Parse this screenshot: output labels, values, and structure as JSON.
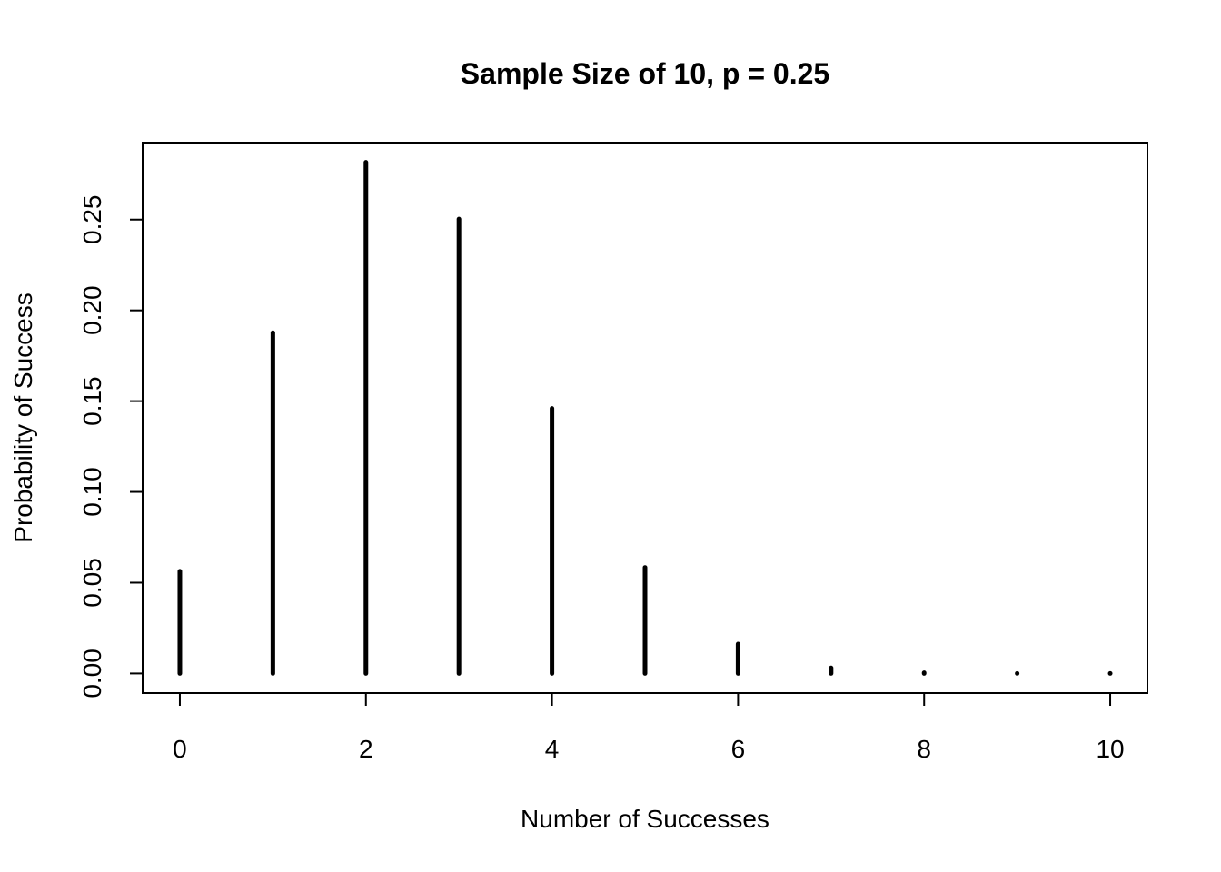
{
  "chart_data": {
    "type": "bar",
    "style": "histogram-lines (type='h')",
    "title": "Sample Size of 10, p = 0.25",
    "xlabel": "Number of Successes",
    "ylabel": "Probability of Success",
    "x": [
      0,
      1,
      2,
      3,
      4,
      5,
      6,
      7,
      8,
      9,
      10
    ],
    "values": [
      0.0563,
      0.1877,
      0.2816,
      0.2503,
      0.146,
      0.0584,
      0.0162,
      0.0031,
      0.0004,
      3e-05,
      1e-06
    ],
    "xlim": [
      -0.4,
      10.4
    ],
    "ylim": [
      -0.0108,
      0.2924
    ],
    "xticks": [
      "0",
      "2",
      "4",
      "6",
      "8",
      "10"
    ],
    "xtick_values": [
      0,
      2,
      4,
      6,
      8,
      10
    ],
    "yticks": [
      "0.00",
      "0.05",
      "0.10",
      "0.15",
      "0.20",
      "0.25"
    ],
    "ytick_values": [
      0,
      0.05,
      0.1,
      0.15,
      0.2,
      0.25
    ],
    "grid": false,
    "legend": "none",
    "color": "#000000"
  }
}
